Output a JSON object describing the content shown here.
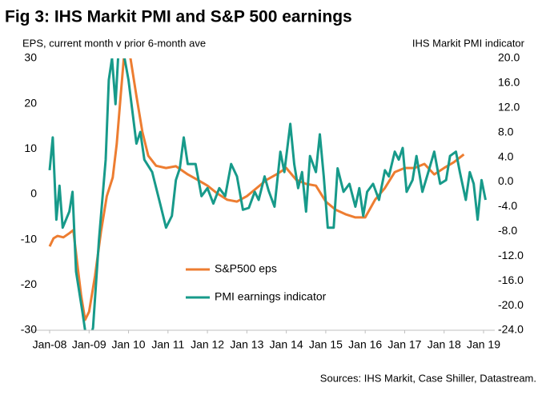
{
  "chart_data": {
    "type": "line",
    "title": "Fig 3: IHS Markit PMI and S&P 500 earnings",
    "y_label": "EPS, current month v prior 6-month ave",
    "y2_label": "IHS Markit PMI indicator",
    "source": "Sources: IHS Markit, Case Shiller, Datastream.",
    "xlim": [
      2008,
      2019
    ],
    "xticks": [
      {
        "value": 2008,
        "label": "Jan-08"
      },
      {
        "value": 2009,
        "label": "Jan-09"
      },
      {
        "value": 2010,
        "label": "Jan 10"
      },
      {
        "value": 2011,
        "label": "Jan 11"
      },
      {
        "value": 2012,
        "label": "Jan 12"
      },
      {
        "value": 2013,
        "label": "Jan 13"
      },
      {
        "value": 2014,
        "label": "Jan 14"
      },
      {
        "value": 2015,
        "label": "Jan 15"
      },
      {
        "value": 2016,
        "label": "Jan 16"
      },
      {
        "value": 2017,
        "label": "Jan 17"
      },
      {
        "value": 2018,
        "label": "Jan 18"
      },
      {
        "value": 2019,
        "label": "Jan 19"
      }
    ],
    "ylim": [
      -30,
      30
    ],
    "yticks": [
      30,
      20,
      10,
      0,
      -10,
      -20,
      -30
    ],
    "y2lim": [
      -24,
      20
    ],
    "y2ticks": [
      {
        "value": 20,
        "label": "20.0"
      },
      {
        "value": 16,
        "label": "16.0"
      },
      {
        "value": 12,
        "label": "12.0"
      },
      {
        "value": 8,
        "label": "8.0"
      },
      {
        "value": 4,
        "label": "4.0"
      },
      {
        "value": 0,
        "label": "0.0"
      },
      {
        "value": -4,
        "label": "-4.0"
      },
      {
        "value": -8,
        "label": "-8.0"
      },
      {
        "value": -12,
        "label": "-12.0"
      },
      {
        "value": -16,
        "label": "-16.0"
      },
      {
        "value": -20,
        "label": "-20.0"
      },
      {
        "value": -24,
        "label": "-24.0"
      }
    ],
    "grid": false,
    "legend": "lower center",
    "series": [
      {
        "name": "S&P500 eps",
        "color": "#ed7d31",
        "axis": "y",
        "x": [
          2008.0,
          2008.1,
          2008.2,
          2008.35,
          2008.5,
          2008.6,
          2008.7,
          2008.8,
          2008.9,
          2009.0,
          2009.15,
          2009.3,
          2009.45,
          2009.6,
          2009.7,
          2009.8,
          2009.9,
          2010.05,
          2010.2,
          2010.35,
          2010.5,
          2010.7,
          2010.95,
          2011.2,
          2011.5,
          2011.75,
          2012.0,
          2012.25,
          2012.5,
          2012.75,
          2013.0,
          2013.25,
          2013.5,
          2013.75,
          2014.0,
          2014.25,
          2014.5,
          2014.75,
          2015.0,
          2015.25,
          2015.5,
          2015.75,
          2016.0,
          2016.25,
          2016.5,
          2016.75,
          2017.0,
          2017.25,
          2017.5,
          2017.75,
          2018.0,
          2018.25,
          2018.5
        ],
        "values": [
          -11.5,
          -9.7,
          -9.2,
          -9.5,
          -8.6,
          -7.9,
          -15.3,
          -22.4,
          -27.7,
          -25.9,
          -18,
          -8.3,
          -0.4,
          3.7,
          11.1,
          21.7,
          32,
          30,
          21.7,
          13.8,
          8.5,
          6.3,
          5.8,
          6.2,
          4.4,
          3.2,
          1.9,
          0.2,
          -1.2,
          -1.6,
          -0.4,
          1.4,
          3.2,
          4.4,
          5.8,
          3.2,
          2.3,
          1.9,
          -1.6,
          -3.4,
          -4.4,
          -5.1,
          -5.1,
          -1.2,
          1.4,
          4.9,
          5.8,
          5.8,
          6.7,
          4.4,
          5.8,
          7.1,
          8.8
        ]
      },
      {
        "name": "PMI earnings indicator",
        "color": "#179a8a",
        "axis": "y2",
        "x": [
          2008.0,
          2008.08,
          2008.17,
          2008.25,
          2008.33,
          2008.5,
          2008.58,
          2008.67,
          2008.83,
          2008.92,
          2009.0,
          2009.1,
          2009.25,
          2009.42,
          2009.5,
          2009.58,
          2009.67,
          2009.75,
          2009.9,
          2010.0,
          2010.1,
          2010.2,
          2010.3,
          2010.4,
          2010.6,
          2010.8,
          2010.95,
          2011.1,
          2011.2,
          2011.3,
          2011.4,
          2011.5,
          2011.7,
          2011.85,
          2012.0,
          2012.15,
          2012.3,
          2012.45,
          2012.6,
          2012.75,
          2012.9,
          2013.05,
          2013.2,
          2013.3,
          2013.45,
          2013.55,
          2013.7,
          2013.85,
          2013.95,
          2014.1,
          2014.2,
          2014.3,
          2014.4,
          2014.5,
          2014.6,
          2014.75,
          2014.85,
          2014.95,
          2015.05,
          2015.2,
          2015.3,
          2015.45,
          2015.6,
          2015.75,
          2015.85,
          2015.95,
          2016.05,
          2016.2,
          2016.35,
          2016.5,
          2016.6,
          2016.75,
          2016.85,
          2016.95,
          2017.05,
          2017.2,
          2017.3,
          2017.45,
          2017.6,
          2017.75,
          2017.9,
          2018.05,
          2018.15,
          2018.3,
          2018.4,
          2018.55,
          2018.65,
          2018.75,
          2018.85,
          2018.95,
          2019.05
        ],
        "values": [
          1.9,
          7.2,
          -6.1,
          -0.6,
          -7.4,
          -4.8,
          -1.6,
          -14.5,
          -21,
          -24.9,
          -26,
          -23.6,
          -9.4,
          3.6,
          16.5,
          20,
          12.6,
          21.7,
          20,
          16.5,
          11.3,
          6.2,
          8.1,
          3.6,
          1.6,
          -3.5,
          -7.4,
          -5.5,
          0.3,
          2.2,
          7.2,
          2.9,
          2.9,
          -2.3,
          -1.0,
          -3.5,
          -1.0,
          -2.3,
          2.9,
          0.9,
          -4.5,
          -4.2,
          -1.6,
          -2.9,
          0.9,
          -1.4,
          -4.0,
          4.9,
          1.6,
          9.4,
          2.9,
          -1.0,
          1.6,
          -4.8,
          4.2,
          1.6,
          7.7,
          0.9,
          -7.4,
          -7.4,
          2.2,
          -1.6,
          -0.3,
          -4.0,
          -1.0,
          -5.5,
          -1.6,
          -0.3,
          -2.9,
          1.9,
          0.9,
          4.9,
          3.6,
          5.5,
          -1.6,
          0.3,
          4.2,
          -1.6,
          1.6,
          4.9,
          -0.3,
          0.3,
          4.2,
          4.9,
          1.6,
          -2.9,
          1.6,
          -0.3,
          -6.1,
          0.3,
          -2.9
        ]
      }
    ]
  }
}
